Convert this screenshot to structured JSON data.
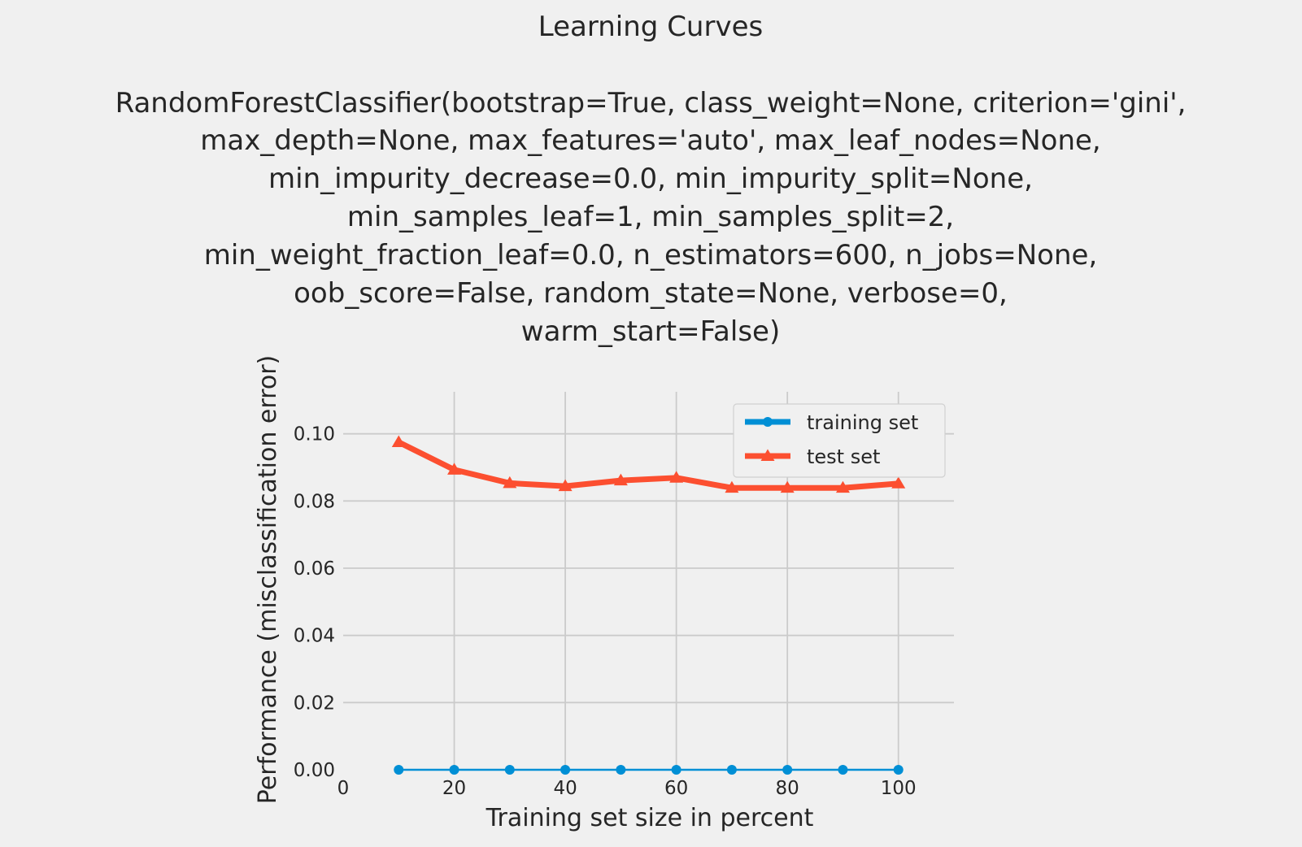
{
  "chart_data": {
    "type": "line",
    "title_lines": [
      "Learning Curves",
      "",
      "RandomForestClassifier(bootstrap=True, class_weight=None, criterion='gini',",
      "max_depth=None, max_features='auto', max_leaf_nodes=None,",
      "min_impurity_decrease=0.0, min_impurity_split=None,",
      "min_samples_leaf=1, min_samples_split=2,",
      "min_weight_fraction_leaf=0.0, n_estimators=600, n_jobs=None,",
      "oob_score=False, random_state=None, verbose=0,",
      "warm_start=False)"
    ],
    "xlabel": "Training set size in percent",
    "ylabel": "Performance (misclassification error)",
    "xlim": [
      0,
      110
    ],
    "ylim": [
      0,
      0.1125
    ],
    "x_ticks": [
      0,
      20,
      40,
      60,
      80,
      100
    ],
    "x_tick_labels": [
      "0",
      "20",
      "40",
      "60",
      "80",
      "100"
    ],
    "y_ticks": [
      0.0,
      0.02,
      0.04,
      0.06,
      0.08,
      0.1
    ],
    "y_tick_labels": [
      "0.00",
      "0.02",
      "0.04",
      "0.06",
      "0.08",
      "0.10"
    ],
    "grid": true,
    "legend_position": "upper right",
    "x": [
      10,
      20,
      30,
      40,
      50,
      60,
      70,
      80,
      90,
      100
    ],
    "series": [
      {
        "name": "training set",
        "color": "#008fd5",
        "marker": "circle",
        "values": [
          0,
          0,
          0,
          0,
          0,
          0,
          0,
          0,
          0,
          0
        ]
      },
      {
        "name": "test set",
        "color": "#fc4f30",
        "marker": "triangle",
        "values": [
          0.0975,
          0.0893,
          0.0853,
          0.0844,
          0.0861,
          0.0869,
          0.0839,
          0.0839,
          0.0839,
          0.0852
        ]
      }
    ]
  }
}
